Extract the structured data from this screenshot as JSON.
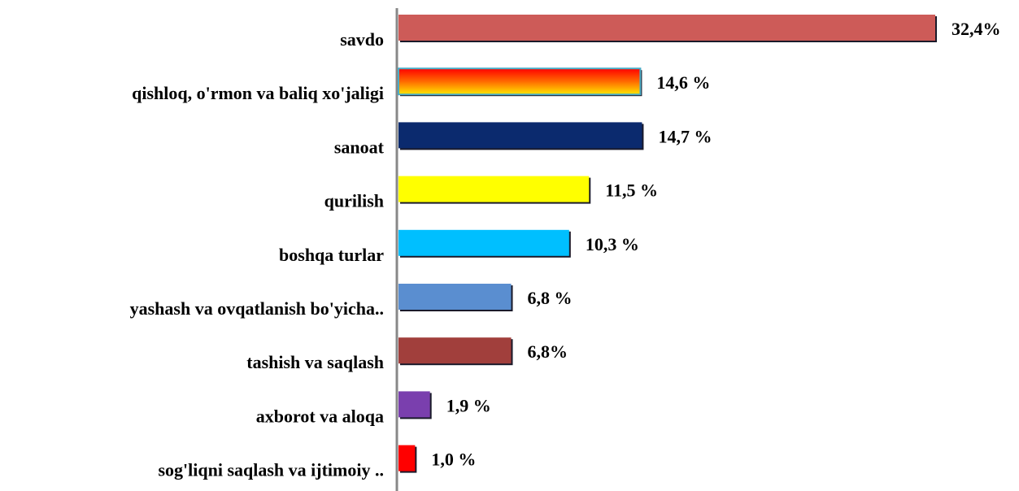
{
  "chart_data": {
    "type": "bar",
    "orientation": "horizontal",
    "categories": [
      "savdo",
      "qishloq, o'rmon va baliq xo'jaligi",
      "sanoat",
      "qurilish",
      "boshqa turlar",
      "yashash va ovqatlanish bo'yicha..",
      "tashish va saqlash",
      "axborot va aloqa",
      "sog'liqni saqlash va ijtimoiy .."
    ],
    "values": [
      32.4,
      14.6,
      14.7,
      11.5,
      10.3,
      6.8,
      6.8,
      1.9,
      1.0
    ],
    "value_labels": [
      "32,4%",
      "14,6 %",
      "14,7 %",
      "11,5 %",
      "10,3 %",
      "6,8 %",
      "6,8%",
      "1,9 %",
      "1,0 %"
    ],
    "colors": [
      "#cd5b58",
      "#ff5a00",
      "#0b2a6e",
      "#ffff00",
      "#00bfff",
      "#5a8ed0",
      "#a13f3c",
      "#7a3fae",
      "#ff0000"
    ]
  }
}
